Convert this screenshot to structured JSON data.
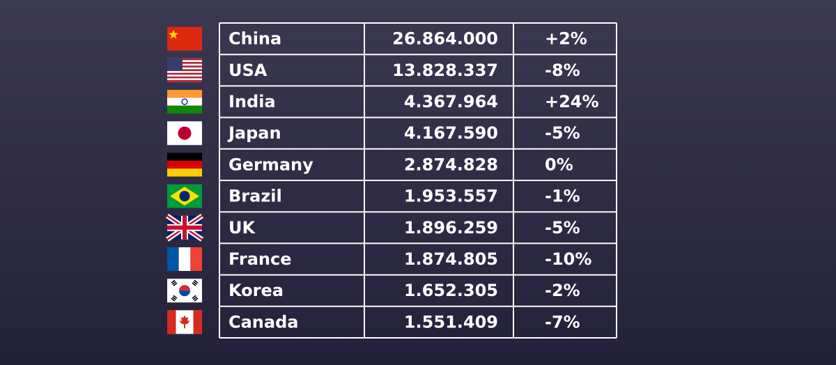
{
  "table": {
    "rows": [
      [
        "China",
        "26.864.000",
        "+2%"
      ],
      [
        "USA",
        "13.828.337",
        "-8%"
      ],
      [
        "India",
        "4.367.964",
        "+24%"
      ],
      [
        "Japan",
        "4.167.590",
        "-5%"
      ],
      [
        "Germany",
        "2.874.828",
        "0%"
      ],
      [
        "Brazil",
        "1.953.557",
        "-1%"
      ],
      [
        "UK",
        "1.896.259",
        "-5%"
      ],
      [
        "France",
        "1.874.805",
        "-10%"
      ],
      [
        "Korea",
        "1.652.305",
        "-2%"
      ],
      [
        "Canada",
        "1.551.409",
        "-7%"
      ]
    ]
  }
}
